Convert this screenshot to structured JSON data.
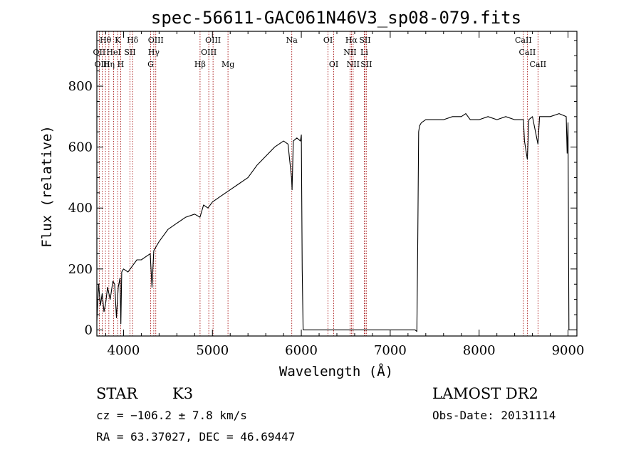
{
  "chart_data": {
    "type": "line",
    "title": "spec-56611-GAC061N46V3_sp08-079.fits",
    "xlabel": "Wavelength (Å)",
    "ylabel": "Flux (relative)",
    "xlim": [
      3700,
      9100
    ],
    "ylim": [
      -20,
      980
    ],
    "xticks": [
      4000,
      5000,
      6000,
      7000,
      8000,
      9000
    ],
    "yticks": [
      0,
      200,
      400,
      600,
      800
    ],
    "grid": false,
    "series": [
      {
        "x": [
          3700,
          3720,
          3740,
          3760,
          3780,
          3800,
          3820,
          3850,
          3880,
          3900,
          3920,
          3940,
          3960,
          3970,
          3980,
          4000,
          4050,
          4100,
          4150,
          4200,
          4250,
          4300,
          4320,
          4340,
          4360,
          4400,
          4450,
          4500,
          4600,
          4700,
          4800,
          4860,
          4900,
          4950,
          5000,
          5100,
          5200,
          5300,
          5400,
          5500,
          5600,
          5700,
          5800,
          5850,
          5890,
          5896,
          5910,
          5950,
          5990,
          6000,
          6010,
          6020,
          6100,
          6500,
          7000,
          7200,
          7280,
          7300,
          7310,
          7320,
          7330,
          7350,
          7400,
          7500,
          7600,
          7700,
          7800,
          7850,
          7900,
          8000,
          8100,
          8200,
          8300,
          8400,
          8498,
          8510,
          8542,
          8560,
          8600,
          8662,
          8680,
          8700,
          8800,
          8900,
          8980,
          8990,
          9000,
          9010,
          9020,
          9050,
          9100
        ],
        "y": [
          30,
          150,
          80,
          120,
          60,
          90,
          140,
          100,
          160,
          150,
          40,
          140,
          170,
          20,
          190,
          200,
          190,
          210,
          230,
          230,
          240,
          250,
          140,
          260,
          270,
          290,
          310,
          330,
          350,
          370,
          380,
          370,
          410,
          400,
          420,
          440,
          460,
          480,
          500,
          540,
          570,
          600,
          620,
          610,
          500,
          460,
          620,
          630,
          620,
          640,
          200,
          0,
          0,
          0,
          0,
          0,
          0,
          -5,
          300,
          650,
          670,
          680,
          690,
          690,
          690,
          700,
          700,
          710,
          690,
          690,
          700,
          690,
          700,
          690,
          690,
          620,
          560,
          690,
          700,
          610,
          700,
          700,
          700,
          710,
          700,
          580,
          680,
          0,
          0,
          0,
          0
        ]
      }
    ],
    "lines_row1": [
      {
        "label": "Hθ",
        "x": 3797
      },
      {
        "label": "K",
        "x": 3934
      },
      {
        "label": "Hδ",
        "x": 4102
      },
      {
        "label": "OIII",
        "x": 4363
      },
      {
        "label": "OIII",
        "x": 5007
      },
      {
        "label": "Na",
        "x": 5893
      },
      {
        "label": "OI",
        "x": 6300
      },
      {
        "label": "Hα",
        "x": 6563
      },
      {
        "label": "SII",
        "x": 6716
      },
      {
        "label": "CaII",
        "x": 8498
      }
    ],
    "lines_row2": [
      {
        "label": "OII",
        "x": 3727
      },
      {
        "label": "HeI",
        "x": 3889
      },
      {
        "label": "SII",
        "x": 4072
      },
      {
        "label": "Hγ",
        "x": 4340
      },
      {
        "label": "OIII",
        "x": 4959
      },
      {
        "label": "NII",
        "x": 6548
      },
      {
        "label": "Li",
        "x": 6708
      },
      {
        "label": "CaII",
        "x": 8542
      }
    ],
    "lines_row3": [
      {
        "label": "OIII",
        "x": 3760
      },
      {
        "label": "Hη",
        "x": 3835
      },
      {
        "label": "H",
        "x": 3968
      },
      {
        "label": "G",
        "x": 4305
      },
      {
        "label": "Hβ",
        "x": 4861
      },
      {
        "label": "Mg",
        "x": 5175
      },
      {
        "label": "OI",
        "x": 6364
      },
      {
        "label": "NII",
        "x": 6583
      },
      {
        "label": "SII",
        "x": 6731
      },
      {
        "label": "CaII",
        "x": 8662
      }
    ],
    "line_color": "#a00000",
    "spectrum_color": "#000000"
  },
  "info": {
    "class": "STAR",
    "subclass": "K3",
    "survey": "LAMOST DR2",
    "cz": "cz = −106.2 ± 7.8 km/s",
    "obs_date": "Obs-Date: 20131114",
    "coords": "RA =  63.37027, DEC =  46.69447"
  }
}
